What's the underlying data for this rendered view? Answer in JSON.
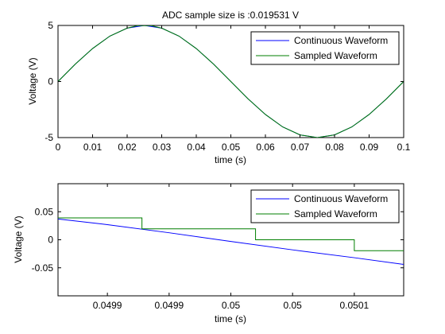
{
  "chart_data": [
    {
      "type": "line",
      "title": "ADC sample size is :0.019531 V",
      "xlabel": "time (s)",
      "ylabel": "Voltage (V)",
      "xlim": [
        0,
        0.1
      ],
      "ylim": [
        -5,
        5
      ],
      "xticks": [
        0,
        0.01,
        0.02,
        0.03,
        0.04,
        0.05,
        0.06,
        0.07,
        0.08,
        0.09,
        0.1
      ],
      "xticklabels": [
        "0",
        "0.01",
        "0.02",
        "0.03",
        "0.04",
        "0.05",
        "0.06",
        "0.07",
        "0.08",
        "0.09",
        "0.1"
      ],
      "yticks": [
        -5,
        0,
        5
      ],
      "yticklabels": [
        "-5",
        "0",
        "5"
      ],
      "legend_position": "top-right",
      "series": [
        {
          "name": "Continuous Waveform",
          "color": "#0000ff",
          "x": [
            0,
            0.005,
            0.01,
            0.015,
            0.02,
            0.025,
            0.03,
            0.035,
            0.04,
            0.045,
            0.05,
            0.055,
            0.06,
            0.065,
            0.07,
            0.075,
            0.08,
            0.085,
            0.09,
            0.095,
            0.1
          ],
          "y": [
            0,
            1.55,
            2.94,
            4.05,
            4.76,
            5,
            4.76,
            4.05,
            2.94,
            1.55,
            0,
            -1.55,
            -2.94,
            -4.05,
            -4.76,
            -5,
            -4.76,
            -4.05,
            -2.94,
            -1.55,
            0
          ]
        },
        {
          "name": "Sampled Waveform",
          "color": "#007f00",
          "x": [
            0,
            0.005,
            0.01,
            0.015,
            0.02,
            0.023,
            0.027,
            0.03,
            0.035,
            0.04,
            0.045,
            0.05,
            0.055,
            0.06,
            0.065,
            0.07,
            0.075,
            0.08,
            0.085,
            0.09,
            0.095,
            0.1
          ],
          "y": [
            0,
            1.55,
            2.94,
            4.05,
            4.76,
            4.98,
            4.98,
            4.76,
            4.05,
            2.94,
            1.55,
            0,
            -1.55,
            -2.94,
            -4.05,
            -4.76,
            -5,
            -4.76,
            -4.05,
            -2.94,
            -1.55,
            0
          ]
        }
      ]
    },
    {
      "type": "line",
      "title": "",
      "xlabel": "time (s)",
      "ylabel": "Voltage (V)",
      "xlim": [
        0.04986,
        0.05014
      ],
      "ylim": [
        -0.1,
        0.1
      ],
      "xticks": [
        0.0499,
        0.04995,
        0.05,
        0.05005,
        0.0501
      ],
      "xticklabels": [
        "0.0499",
        "0.0499",
        "0.05",
        "0.05",
        "0.0501"
      ],
      "yticks": [
        -0.05,
        0,
        0.05
      ],
      "yticklabels": [
        "-0.05",
        "0",
        "0.05"
      ],
      "legend_position": "top-right",
      "series": [
        {
          "name": "Continuous Waveform",
          "color": "#0000ff",
          "x": [
            0.04986,
            0.0499,
            0.04995,
            0.05,
            0.05005,
            0.0501,
            0.05014
          ],
          "y": [
            0.037,
            0.027,
            0.0125,
            -0.003,
            -0.018,
            -0.032,
            -0.044
          ]
        },
        {
          "name": "Sampled Waveform",
          "color": "#007f00",
          "step": true,
          "x": [
            0.04986,
            0.049928,
            0.049928,
            0.05002,
            0.05002,
            0.0501,
            0.0501,
            0.050173,
            0.050173,
            0.05014
          ],
          "y": [
            0.039,
            0.039,
            0.0195,
            0.0195,
            0,
            0,
            -0.0195,
            -0.0195,
            -0.039,
            -0.039
          ]
        }
      ]
    }
  ]
}
